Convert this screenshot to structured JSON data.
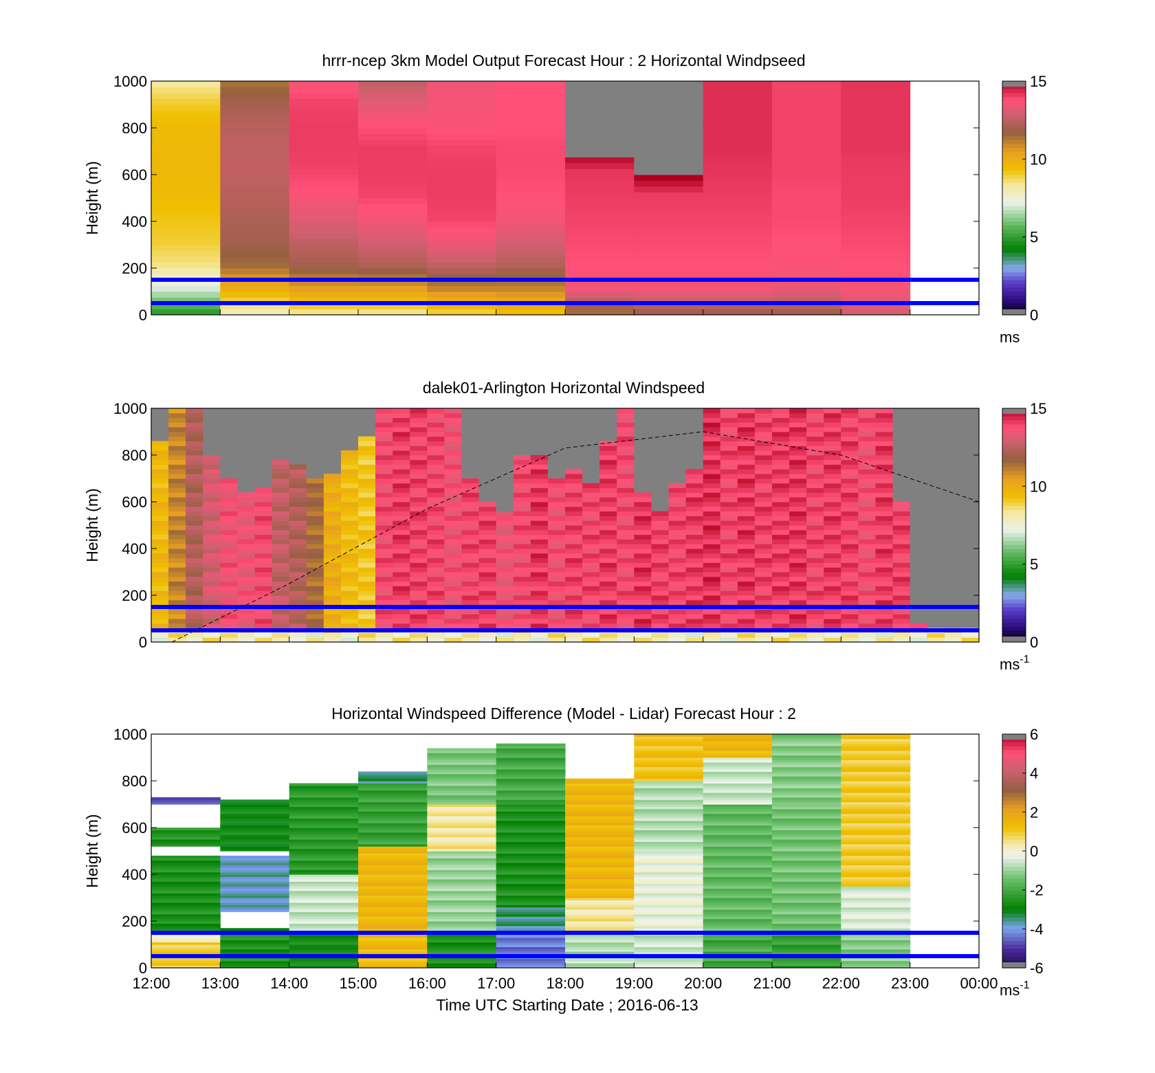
{
  "time_axis": {
    "ticks": [
      "12:00",
      "13:00",
      "14:00",
      "15:00",
      "16:00",
      "17:00",
      "18:00",
      "19:00",
      "20:00",
      "21:00",
      "22:00",
      "23:00",
      "00:00"
    ],
    "label": "Time UTC  Starting Date ; 2016-06-13"
  },
  "reference_lines": {
    "heights_m": [
      150,
      50
    ],
    "color": "#0000ff"
  },
  "chart_data": [
    {
      "type": "heatmap",
      "title": "hrrr-ncep 3km Model Output   Forecast Hour : 2 Horizontal Windpseed",
      "ylabel": "Height (m)",
      "ylim": [
        0,
        1000
      ],
      "yticks": [
        "0",
        "200",
        "400",
        "600",
        "800",
        "1000"
      ],
      "colorbar": {
        "min": 0,
        "max": 15,
        "ticks": [
          "0",
          "5",
          "10",
          "15"
        ],
        "unit": "ms",
        "unit_sup": ""
      },
      "x_hours": [
        12,
        13,
        14,
        15,
        16,
        17,
        18,
        19,
        20,
        21,
        22,
        23
      ],
      "z_bands_m": [
        0,
        50,
        100,
        200,
        300,
        400,
        500,
        600,
        700,
        800,
        900,
        1000
      ],
      "columns": [
        {
          "hour": 12,
          "speed": [
            5,
            7,
            8.5,
            9,
            9.2,
            9.5,
            9.6,
            9.6,
            9.5,
            9,
            8.2
          ]
        },
        {
          "hour": 13,
          "speed": [
            8,
            10,
            11.5,
            12,
            12.2,
            12.4,
            12.6,
            12.6,
            12.4,
            12,
            11.2
          ]
        },
        {
          "hour": 14,
          "speed": [
            8.5,
            10.5,
            12,
            12.6,
            13.2,
            13.7,
            14,
            14.1,
            14.1,
            14,
            13.5
          ]
        },
        {
          "hour": 15,
          "speed": [
            8.5,
            10.5,
            12.2,
            13,
            13.6,
            14,
            14.1,
            14.1,
            13.8,
            13.2,
            12.5
          ]
        },
        {
          "hour": 16,
          "speed": [
            9,
            11,
            12.6,
            13.5,
            14,
            14.1,
            14.1,
            14,
            13.7,
            13.6,
            13.5
          ]
        },
        {
          "hour": 17,
          "speed": [
            9.5,
            11,
            12.3,
            13,
            13.6,
            13.8,
            13.9,
            13.9,
            13.8,
            13.8,
            13.8
          ]
        },
        {
          "hour": 18,
          "speed": [
            11.5,
            13.6,
            13.8,
            13.9,
            14,
            14.1,
            14.2,
            15.3,
            15.3,
            15.3,
            15.3
          ]
        },
        {
          "hour": 19,
          "speed": [
            12,
            13.6,
            13.8,
            13.9,
            14,
            14.1,
            15.3,
            15.3,
            15.3,
            15.3,
            15.3
          ]
        },
        {
          "hour": 20,
          "speed": [
            12,
            13.6,
            13.8,
            13.9,
            14,
            14.1,
            14.2,
            14.3,
            14.3,
            14.3,
            14.3
          ]
        },
        {
          "hour": 21,
          "speed": [
            12,
            13.4,
            13.7,
            13.8,
            13.9,
            13.9,
            14,
            14,
            14,
            14,
            14
          ]
        },
        {
          "hour": 22,
          "speed": [
            13,
            13.6,
            13.8,
            13.9,
            14,
            14.1,
            14.1,
            14.2,
            14.2,
            14.2,
            14.2
          ]
        }
      ],
      "missing_value_color": "#808080"
    },
    {
      "type": "heatmap",
      "title": "dalek01-Arlington  Horizontal Windspeed",
      "ylabel": "Height (m)",
      "ylim": [
        0,
        1000
      ],
      "yticks": [
        "0",
        "200",
        "400",
        "600",
        "800",
        "1000"
      ],
      "colorbar": {
        "min": 0,
        "max": 15,
        "ticks": [
          "0",
          "5",
          "10",
          "15"
        ],
        "unit": "ms",
        "unit_sup": "-1"
      },
      "x_range_hours": [
        12,
        24
      ],
      "column_width_hours": 0.25,
      "column_top_m": [
        850,
        1000,
        1000,
        800,
        700,
        640,
        660,
        770,
        750,
        700,
        710,
        820,
        880,
        1000,
        1000,
        1000,
        1000,
        1000,
        700,
        600,
        560,
        800,
        800,
        690,
        740,
        680,
        850,
        1000,
        630,
        550,
        670,
        730,
        1000,
        1000,
        1000,
        1000,
        1000,
        1000,
        1000,
        1000,
        1000,
        1000,
        1000,
        600,
        70,
        60,
        50,
        50
      ],
      "column_base_speed": [
        9.6,
        11,
        12.3,
        13,
        13.6,
        13.5,
        13.8,
        12.6,
        12.3,
        11.5,
        10,
        9.5,
        9.2,
        13.8,
        14.1,
        14,
        13.9,
        13.6,
        13.9,
        14,
        13.5,
        13.8,
        14.2,
        13.7,
        14,
        13.9,
        14.1,
        13.8,
        14.2,
        14,
        13.9,
        14.1,
        14.3,
        13.9,
        14.2,
        14,
        14.1,
        14.2,
        13.9,
        14.1,
        14,
        13.7,
        14.1,
        14,
        13.5,
        13.8,
        14,
        13.6
      ],
      "boundary_curve": {
        "style": "dashed",
        "x_hours": [
          12.3,
          14,
          16,
          18,
          20,
          22,
          24
        ],
        "height_m": [
          0,
          250,
          570,
          830,
          900,
          800,
          600
        ]
      },
      "missing_value_color": "#808080"
    },
    {
      "type": "heatmap",
      "title": "Horizontal Windspeed Difference (Model - Lidar) Forecast Hour : 2",
      "ylabel": "Height (m)",
      "ylim": [
        0,
        1000
      ],
      "yticks": [
        "0",
        "200",
        "400",
        "600",
        "800",
        "1000"
      ],
      "colorbar": {
        "min": -6,
        "max": 6,
        "ticks": [
          "-6",
          "-4",
          "-2",
          "0",
          "2",
          "4",
          "6"
        ],
        "unit": "ms",
        "unit_sup": "-1"
      },
      "x_hours": [
        12,
        13,
        14,
        15,
        16,
        17,
        18,
        19,
        20,
        21,
        22
      ],
      "columns": [
        {
          "hour": 12,
          "top_m": 730,
          "segments": [
            [
              0,
              110,
              1.0
            ],
            [
              110,
              160,
              0.2
            ],
            [
              160,
              480,
              -2.6
            ],
            [
              520,
              600,
              -2.5
            ],
            [
              700,
              730,
              -4.5
            ]
          ]
        },
        {
          "hour": 13,
          "top_m": 720,
          "segments": [
            [
              0,
              170,
              -2.6
            ],
            [
              240,
              480,
              -3.8
            ],
            [
              500,
              720,
              -2.8
            ]
          ]
        },
        {
          "hour": 14,
          "top_m": 790,
          "segments": [
            [
              0,
              160,
              -2.8
            ],
            [
              160,
              400,
              -0.6
            ],
            [
              400,
              790,
              -2.4
            ]
          ]
        },
        {
          "hour": 15,
          "top_m": 840,
          "segments": [
            [
              0,
              160,
              1.4
            ],
            [
              160,
              520,
              1.5
            ],
            [
              520,
              790,
              -2.2
            ],
            [
              790,
              840,
              -3.5
            ]
          ]
        },
        {
          "hour": 16,
          "top_m": 940,
          "segments": [
            [
              0,
              160,
              -2.6
            ],
            [
              160,
              500,
              -1.0
            ],
            [
              500,
              700,
              0.4
            ],
            [
              700,
              940,
              -1.3
            ]
          ]
        },
        {
          "hour": 17,
          "top_m": 960,
          "segments": [
            [
              0,
              160,
              -4.3
            ],
            [
              160,
              260,
              -3.5
            ],
            [
              260,
              700,
              -2.6
            ],
            [
              700,
              960,
              -2.0
            ]
          ]
        },
        {
          "hour": 18,
          "top_m": 810,
          "segments": [
            [
              0,
              160,
              -0.8
            ],
            [
              160,
              300,
              0.4
            ],
            [
              300,
              810,
              1.5
            ]
          ]
        },
        {
          "hour": 19,
          "top_m": 1000,
          "segments": [
            [
              0,
              160,
              -0.6
            ],
            [
              160,
              500,
              -0.2
            ],
            [
              500,
              800,
              -0.8
            ],
            [
              800,
              1000,
              1.2
            ]
          ]
        },
        {
          "hour": 20,
          "top_m": 1000,
          "segments": [
            [
              0,
              160,
              -2.0
            ],
            [
              160,
              700,
              -1.6
            ],
            [
              700,
              900,
              -0.6
            ],
            [
              900,
              1000,
              1.5
            ]
          ]
        },
        {
          "hour": 21,
          "top_m": 1000,
          "segments": [
            [
              0,
              160,
              -2.2
            ],
            [
              160,
              700,
              -1.4
            ],
            [
              700,
              1000,
              -1.2
            ]
          ]
        },
        {
          "hour": 22,
          "top_m": 1000,
          "segments": [
            [
              0,
              160,
              -1.2
            ],
            [
              160,
              350,
              -0.4
            ],
            [
              350,
              1000,
              1.0
            ]
          ]
        }
      ]
    }
  ]
}
